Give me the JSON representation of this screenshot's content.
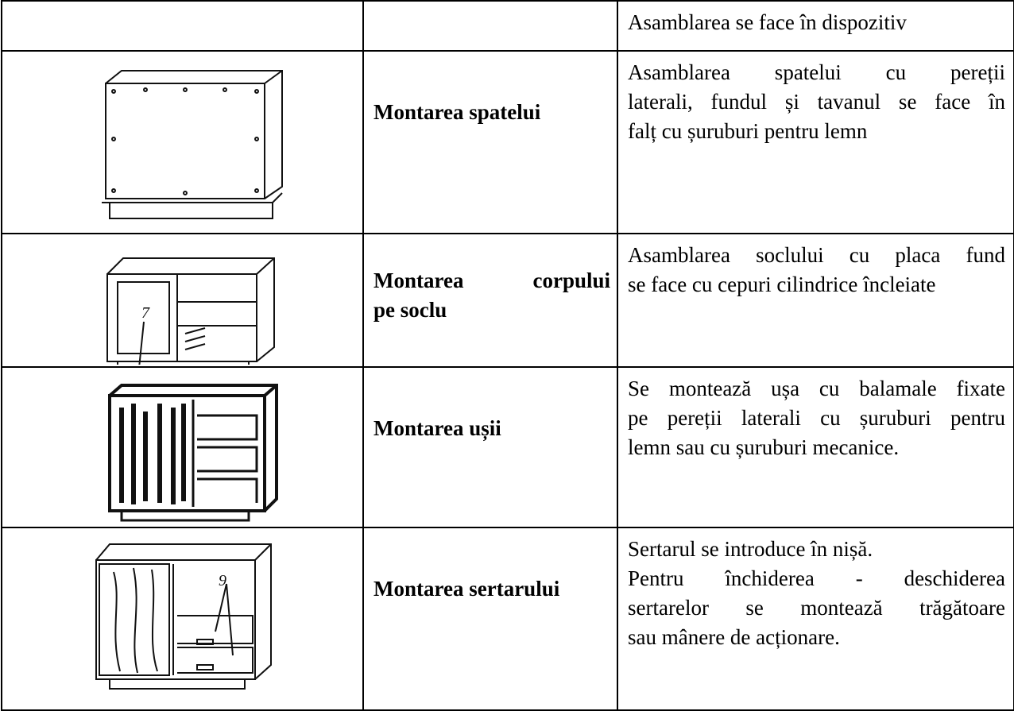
{
  "table": {
    "rows": [
      {
        "description": [
          [
            "Asamblarea se face în dispozitiv"
          ]
        ]
      },
      {
        "name_lines": [
          "Montarea spatelui"
        ],
        "description": [
          [
            "Asamblarea spatelui cu pereții",
            "laterali, fundul și tavanul se face în",
            "falț cu șuruburi pentru lemn"
          ]
        ]
      },
      {
        "name_lines": [
          "Montarea corpului",
          "pe soclu"
        ],
        "figure_label": "7",
        "description": [
          [
            "Asamblarea soclului cu placa fund",
            "se face cu cepuri cilindrice încleiate"
          ]
        ]
      },
      {
        "name_lines": [
          "Montarea ușii"
        ],
        "description": [
          [
            "Se montează ușa cu balamale fixate",
            "pe pereții laterali cu șuruburi pentru",
            "lemn sau cu șuruburi mecanice."
          ]
        ]
      },
      {
        "name_lines": [
          "Montarea sertarului"
        ],
        "figure_label": "9",
        "description": [
          [
            "Sertarul se introduce în nișă."
          ],
          [
            "Pentru închiderea - deschiderea",
            "sertarelor se montează trăgătoare",
            "sau mânere de acționare."
          ]
        ]
      }
    ]
  }
}
